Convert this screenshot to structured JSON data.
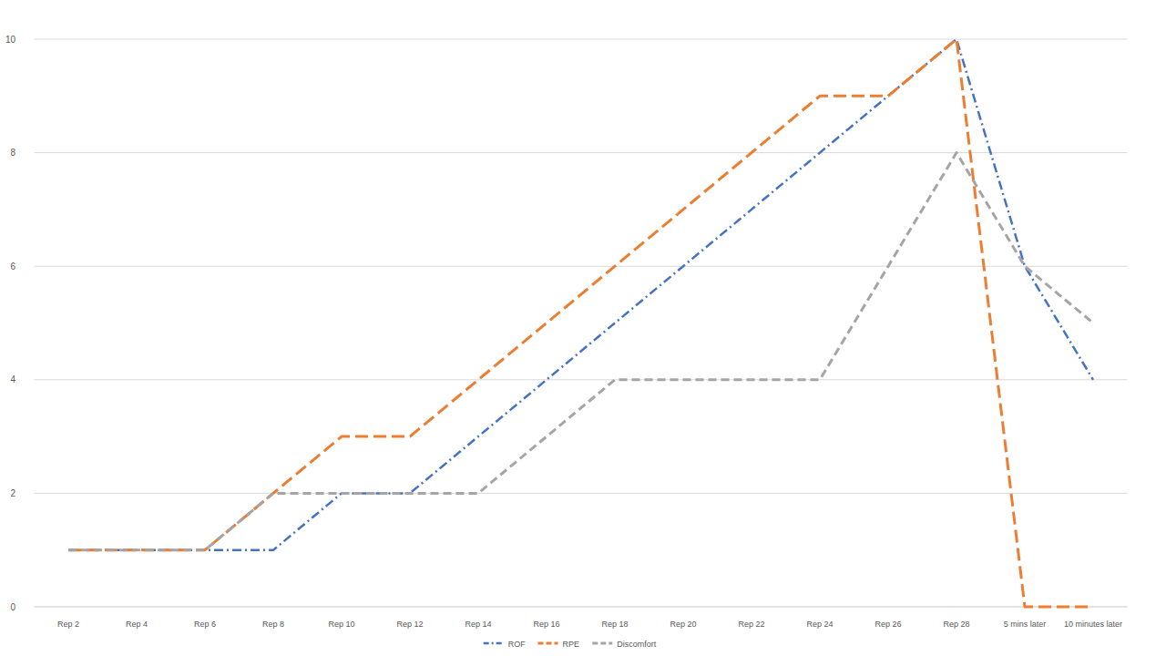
{
  "chart_data": {
    "type": "line",
    "categories": [
      "Rep 2",
      "Rep 4",
      "Rep 6",
      "Rep 8",
      "Rep 10",
      "Rep 12",
      "Rep 14",
      "Rep 16",
      "Rep 18",
      "Rep 20",
      "Rep 22",
      "Rep 24",
      "Rep 26",
      "Rep 28",
      "5 mins later",
      "10 minutes later"
    ],
    "series": [
      {
        "name": "ROF",
        "color": "#4472c4",
        "line_style": "dashdot",
        "values": [
          1,
          1,
          1,
          1,
          2,
          2,
          3,
          4,
          5,
          6,
          7,
          8,
          9,
          10,
          6,
          4
        ]
      },
      {
        "name": "RPE",
        "color": "#ed7d31",
        "line_style": "dashed",
        "values": [
          1,
          1,
          1,
          2,
          3,
          3,
          4,
          5,
          6,
          7,
          8,
          9,
          9,
          10,
          0,
          0
        ]
      },
      {
        "name": "Discomfort",
        "color": "#a5a5a5",
        "line_style": "dashed",
        "values": [
          1,
          1,
          1,
          2,
          2,
          2,
          2,
          3,
          4,
          4,
          4,
          4,
          6,
          8,
          6,
          5
        ]
      }
    ],
    "ylim": [
      0,
      10
    ],
    "yticks": [
      0,
      2,
      4,
      6,
      8,
      10
    ],
    "grid": true,
    "legend": "bottom"
  }
}
